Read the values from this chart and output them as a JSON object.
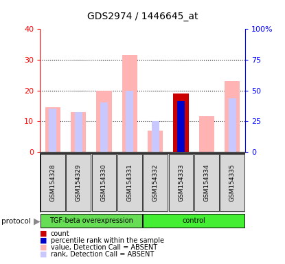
{
  "title": "GDS2974 / 1446645_at",
  "samples": [
    "GSM154328",
    "GSM154329",
    "GSM154330",
    "GSM154331",
    "GSM154332",
    "GSM154333",
    "GSM154334",
    "GSM154335"
  ],
  "value_absent": [
    14.5,
    13.0,
    19.8,
    31.5,
    7.0,
    null,
    11.5,
    23.0
  ],
  "rank_absent": [
    35.0,
    32.5,
    40.0,
    50.0,
    25.0,
    null,
    null,
    43.75
  ],
  "count_value": [
    null,
    null,
    null,
    null,
    null,
    19.0,
    null,
    null
  ],
  "percentile_rank_value": [
    null,
    null,
    null,
    null,
    null,
    41.25,
    null,
    null
  ],
  "ylim_left": [
    0,
    40
  ],
  "ylim_right": [
    0,
    100
  ],
  "yticks_left": [
    0,
    10,
    20,
    30,
    40
  ],
  "yticks_right": [
    0,
    25,
    50,
    75,
    100
  ],
  "yticklabels_right": [
    "0",
    "25",
    "50",
    "75",
    "100%"
  ],
  "color_count": "#cc0000",
  "color_percentile": "#0000cc",
  "color_value_absent": "#ffb3b3",
  "color_rank_absent": "#c8c8ff",
  "group1_label": "TGF-beta overexpression",
  "group2_label": "control",
  "group1_color": "#66dd55",
  "group2_color": "#44ee33",
  "bar_width": 0.6,
  "rank_bar_width": 0.3,
  "legend_labels": [
    "count",
    "percentile rank within the sample",
    "value, Detection Call = ABSENT",
    "rank, Detection Call = ABSENT"
  ],
  "legend_colors": [
    "#cc0000",
    "#0000cc",
    "#ffb3b3",
    "#c8c8ff"
  ],
  "protocol_arrow": "▶",
  "protocol_label": "protocol"
}
